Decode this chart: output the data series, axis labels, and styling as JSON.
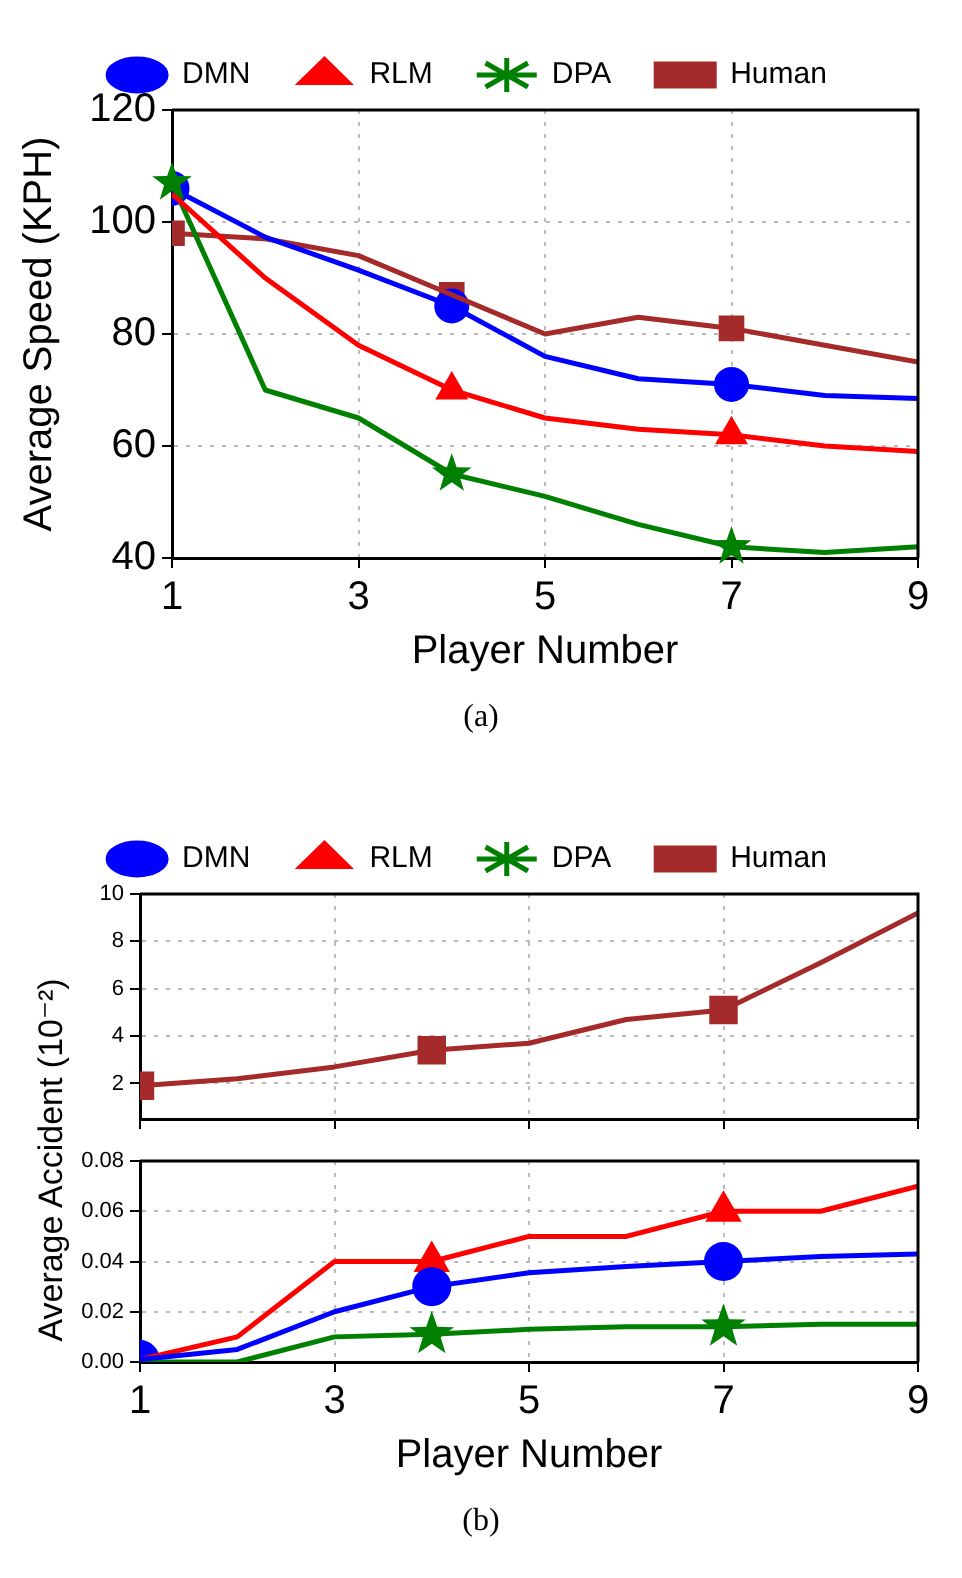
{
  "chart_data": [
    {
      "type": "line",
      "xlabel": "Player Number",
      "ylabel": "Average Speed (KPH)",
      "x": [
        1,
        2,
        3,
        4,
        5,
        6,
        7,
        8,
        9
      ],
      "xlim": [
        1,
        9
      ],
      "xticks": [
        1,
        3,
        5,
        7,
        9
      ],
      "ylim": [
        40,
        120
      ],
      "yticks": [
        40,
        60,
        80,
        100,
        120
      ],
      "grid": true,
      "legend": "top",
      "line_style": "solid",
      "annotations": [
        "(a)"
      ],
      "series": [
        {
          "name": "DMN",
          "color": "#0000ff",
          "marker": "none",
          "values": [
            106,
            97.3,
            91.4,
            85,
            76,
            72,
            71,
            69,
            68.5
          ]
        },
        {
          "name": "RLM",
          "color": "#ff0000",
          "marker": "none",
          "values": [
            105,
            90,
            78,
            70,
            65,
            63,
            62,
            60,
            59
          ]
        },
        {
          "name": "DPA",
          "color": "#008000",
          "marker": "none",
          "values": [
            107,
            70,
            65,
            55,
            51,
            46,
            42,
            41,
            42
          ]
        },
        {
          "name": "Human",
          "color": "#a52a2a",
          "marker": "none",
          "values": [
            98,
            97,
            94,
            87,
            80,
            83,
            81,
            78,
            75
          ]
        },
        {
          "type": "scatter",
          "color": "#0000ff",
          "marker": "circle",
          "x": [
            1,
            4,
            7
          ],
          "values": [
            106,
            85,
            71
          ]
        },
        {
          "type": "scatter",
          "color": "#ff0000",
          "marker": "triangle",
          "x": [
            4,
            7
          ],
          "values": [
            70,
            62
          ]
        },
        {
          "type": "scatter",
          "color": "#008000",
          "marker": "star",
          "x": [
            1,
            4,
            7
          ],
          "values": [
            107,
            55,
            42
          ]
        },
        {
          "type": "scatter",
          "color": "#a52a2a",
          "marker": "square",
          "x": [
            1,
            4,
            7
          ],
          "values": [
            98,
            87,
            81
          ]
        }
      ]
    },
    {
      "type": "line",
      "ylabel": "Average Accident (10⁻²)",
      "x": [
        1,
        2,
        3,
        4,
        5,
        6,
        7,
        8,
        9
      ],
      "xlim": [
        1,
        9
      ],
      "xticks": [
        1,
        3,
        5,
        7,
        9
      ],
      "ylim": [
        0.5,
        10
      ],
      "yticks": [
        2,
        4,
        6,
        8,
        10
      ],
      "grid": true,
      "legend": "top",
      "tick_labels": "y",
      "line_style": "solid",
      "series": [
        {
          "name": "DMN",
          "color": "#0000ff",
          "marker": "circle",
          "values": [
            null,
            null,
            null,
            null,
            null,
            null,
            null,
            null,
            null
          ]
        },
        {
          "name": "RLM",
          "color": "#ff0000",
          "marker": "triangle",
          "values": [
            null,
            null,
            null,
            null,
            null,
            null,
            null,
            null,
            null
          ]
        },
        {
          "name": "DPA",
          "color": "#008000",
          "marker": "star",
          "values": [
            null,
            null,
            null,
            null,
            null,
            null,
            null,
            null,
            null
          ]
        },
        {
          "name": "Human",
          "color": "#a52a2a",
          "marker": "none",
          "values": [
            1.9,
            2.2,
            2.7,
            3.4,
            3.7,
            4.7,
            5.1,
            7.1,
            9.2
          ]
        },
        {
          "type": "scatter",
          "color": "#a52a2a",
          "marker": "square",
          "x": [
            1,
            4,
            7
          ],
          "values": [
            1.9,
            3.4,
            5.1
          ]
        }
      ]
    },
    {
      "type": "line",
      "xlabel": "Player Number",
      "x": [
        1,
        2,
        3,
        4,
        5,
        6,
        7,
        8,
        9
      ],
      "xlim": [
        1,
        9
      ],
      "xticks": [
        1,
        3,
        5,
        7,
        9
      ],
      "ylim": [
        0,
        0.08
      ],
      "yticks": [
        {
          "value": 0,
          "label": "0.00"
        },
        {
          "value": 0.02,
          "label": "0.02"
        },
        {
          "value": 0.04,
          "label": "0.04"
        },
        {
          "value": 0.06,
          "label": "0.06"
        },
        {
          "value": 0.08,
          "label": "0.08"
        }
      ],
      "grid": true,
      "line_style": "solid",
      "annotations": [
        "(b)"
      ],
      "series": [
        {
          "color": "#0000ff",
          "marker": "none",
          "values": [
            0.001,
            0.005,
            0.02,
            0.03,
            0.0355,
            0.038,
            0.04,
            0.042,
            0.043
          ]
        },
        {
          "color": "#ff0000",
          "marker": "none",
          "values": [
            0.001,
            0.01,
            0.04,
            0.04,
            0.05,
            0.05,
            0.06,
            0.06,
            0.07
          ]
        },
        {
          "color": "#008000",
          "marker": "none",
          "values": [
            0,
            0,
            0.01,
            0.011,
            0.013,
            0.014,
            0.014,
            0.015,
            0.015
          ]
        },
        {
          "type": "scatter",
          "color": "#0000ff",
          "marker": "circle",
          "x": [
            1,
            4,
            7
          ],
          "values": [
            0.001,
            0.03,
            0.04
          ]
        },
        {
          "type": "scatter",
          "color": "#ff0000",
          "marker": "triangle",
          "x": [
            4,
            7
          ],
          "values": [
            0.04,
            0.06
          ]
        },
        {
          "type": "scatter",
          "color": "#008000",
          "marker": "star",
          "x": [
            4,
            7
          ],
          "values": [
            0.011,
            0.014
          ]
        }
      ]
    }
  ]
}
